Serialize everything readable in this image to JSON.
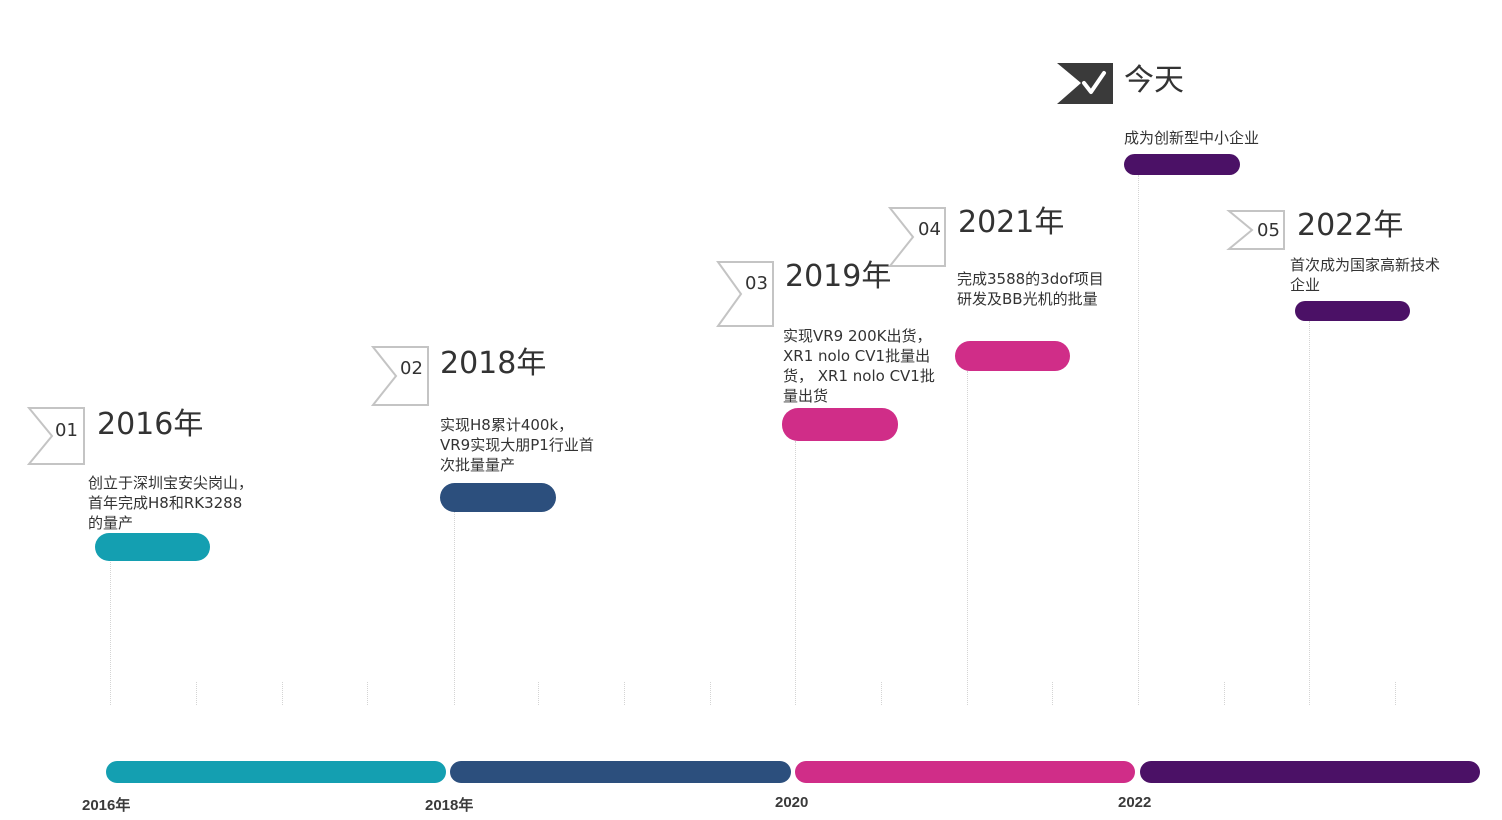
{
  "milestones": [
    {
      "num": "01",
      "year": "2016年",
      "desc": "创立于深圳宝安尖岗山，\n首年完成H8和RK3288\n的量产"
    },
    {
      "num": "02",
      "year": "2018年",
      "desc": "实现H8累计400k，\nVR9实现大朋P1行业首\n次批量量产"
    },
    {
      "num": "03",
      "year": "2019年",
      "desc": "实现VR9 200K出货，\nXR1 nolo CV1批量出\n货， XR1 nolo CV1批\n量出货"
    },
    {
      "num": "04",
      "year": "2021年",
      "desc": "完成3588的3dof项目\n研发及BB光机的批量"
    },
    {
      "num": "05",
      "year": "2022年",
      "desc": "首次成为国家高新技术\n企业"
    }
  ],
  "today": {
    "title": "今天",
    "desc": "成为创新型中小企业"
  },
  "axis": {
    "labels": [
      "2016年",
      "2018年",
      "2020",
      "2022"
    ]
  },
  "colors": {
    "teal": "#149fb1",
    "navy": "#2c4f7d",
    "magenta": "#d02d88",
    "purple": "#4b1166",
    "dark": "#3a3a3a"
  }
}
